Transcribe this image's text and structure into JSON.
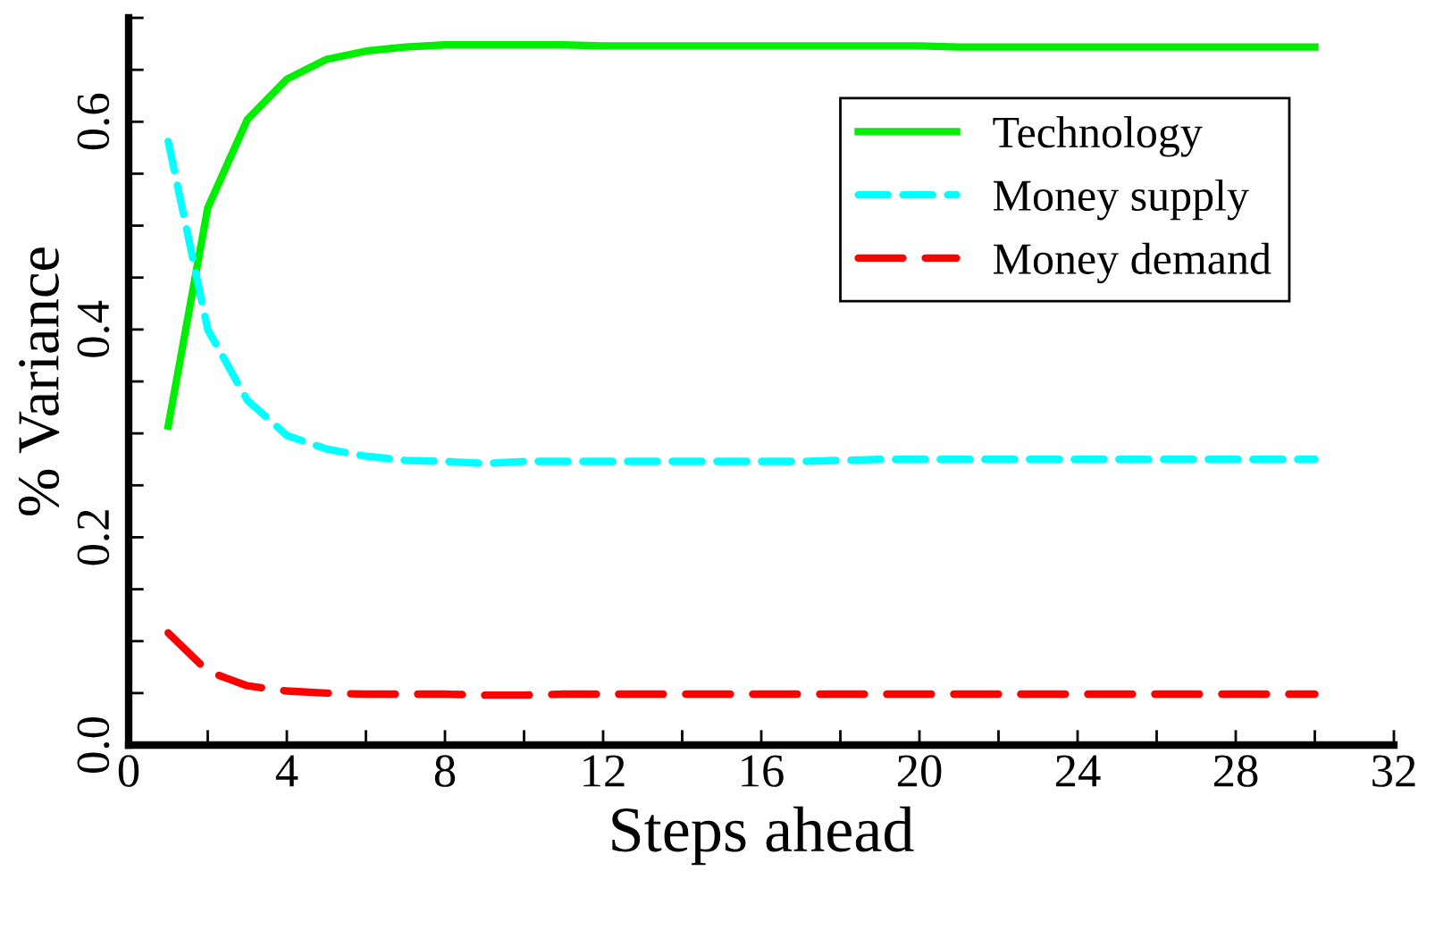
{
  "chart_data": {
    "type": "line",
    "xlabel": "Steps ahead",
    "ylabel": "% Variance",
    "x": [
      1,
      2,
      3,
      4,
      5,
      6,
      7,
      8,
      9,
      10,
      11,
      12,
      13,
      14,
      15,
      16,
      17,
      18,
      19,
      20,
      21,
      22,
      23,
      24,
      25,
      26,
      27,
      28,
      29,
      30
    ],
    "series": [
      {
        "name": "Technology",
        "color": "#00ee00",
        "line_style": "solid",
        "values": [
          0.307,
          0.517,
          0.602,
          0.641,
          0.66,
          0.668,
          0.672,
          0.674,
          0.674,
          0.674,
          0.674,
          0.673,
          0.673,
          0.673,
          0.673,
          0.673,
          0.673,
          0.673,
          0.673,
          0.673,
          0.672,
          0.672,
          0.672,
          0.672,
          0.672,
          0.672,
          0.672,
          0.672,
          0.672,
          0.672
        ]
      },
      {
        "name": "Money supply",
        "color": "#00ffff",
        "line_style": "dashed",
        "values": [
          0.581,
          0.4,
          0.332,
          0.298,
          0.285,
          0.278,
          0.274,
          0.273,
          0.271,
          0.273,
          0.273,
          0.273,
          0.273,
          0.273,
          0.273,
          0.273,
          0.273,
          0.274,
          0.275,
          0.275,
          0.275,
          0.275,
          0.275,
          0.275,
          0.275,
          0.275,
          0.275,
          0.275,
          0.275,
          0.275
        ]
      },
      {
        "name": "Money demand",
        "color": "#ff0000",
        "line_style": "dashdot",
        "values": [
          0.108,
          0.071,
          0.057,
          0.052,
          0.05,
          0.049,
          0.049,
          0.049,
          0.048,
          0.048,
          0.049,
          0.049,
          0.049,
          0.049,
          0.049,
          0.049,
          0.049,
          0.049,
          0.049,
          0.049,
          0.049,
          0.049,
          0.049,
          0.049,
          0.049,
          0.049,
          0.049,
          0.049,
          0.049,
          0.049
        ]
      }
    ],
    "xlim": [
      0,
      32
    ],
    "xticks": [
      0,
      {
        "value": 2,
        "label": null
      },
      4,
      {
        "value": 6,
        "label": null
      },
      8,
      {
        "value": 10,
        "label": null
      },
      12,
      {
        "value": 14,
        "label": null
      },
      16,
      {
        "value": 18,
        "label": null
      },
      20,
      {
        "value": 22,
        "label": null
      },
      24,
      {
        "value": 26,
        "label": null
      },
      28,
      {
        "value": 30,
        "label": null
      },
      32
    ],
    "ylim": [
      0,
      0.7
    ],
    "yticks": [
      {
        "value": 0,
        "label": "0.0"
      },
      {
        "value": 0.05,
        "label": null
      },
      {
        "value": 0.1,
        "label": null
      },
      {
        "value": 0.15,
        "label": null
      },
      0.2,
      {
        "value": 0.25,
        "label": null
      },
      {
        "value": 0.3,
        "label": null
      },
      {
        "value": 0.35,
        "label": null
      },
      0.4,
      {
        "value": 0.45,
        "label": null
      },
      {
        "value": 0.5,
        "label": null
      },
      {
        "value": 0.55,
        "label": null
      },
      0.6,
      {
        "value": 0.65,
        "label": null
      },
      {
        "value": 0.7,
        "label": null
      }
    ],
    "grid": false,
    "legend": "right",
    "marker": "none"
  }
}
